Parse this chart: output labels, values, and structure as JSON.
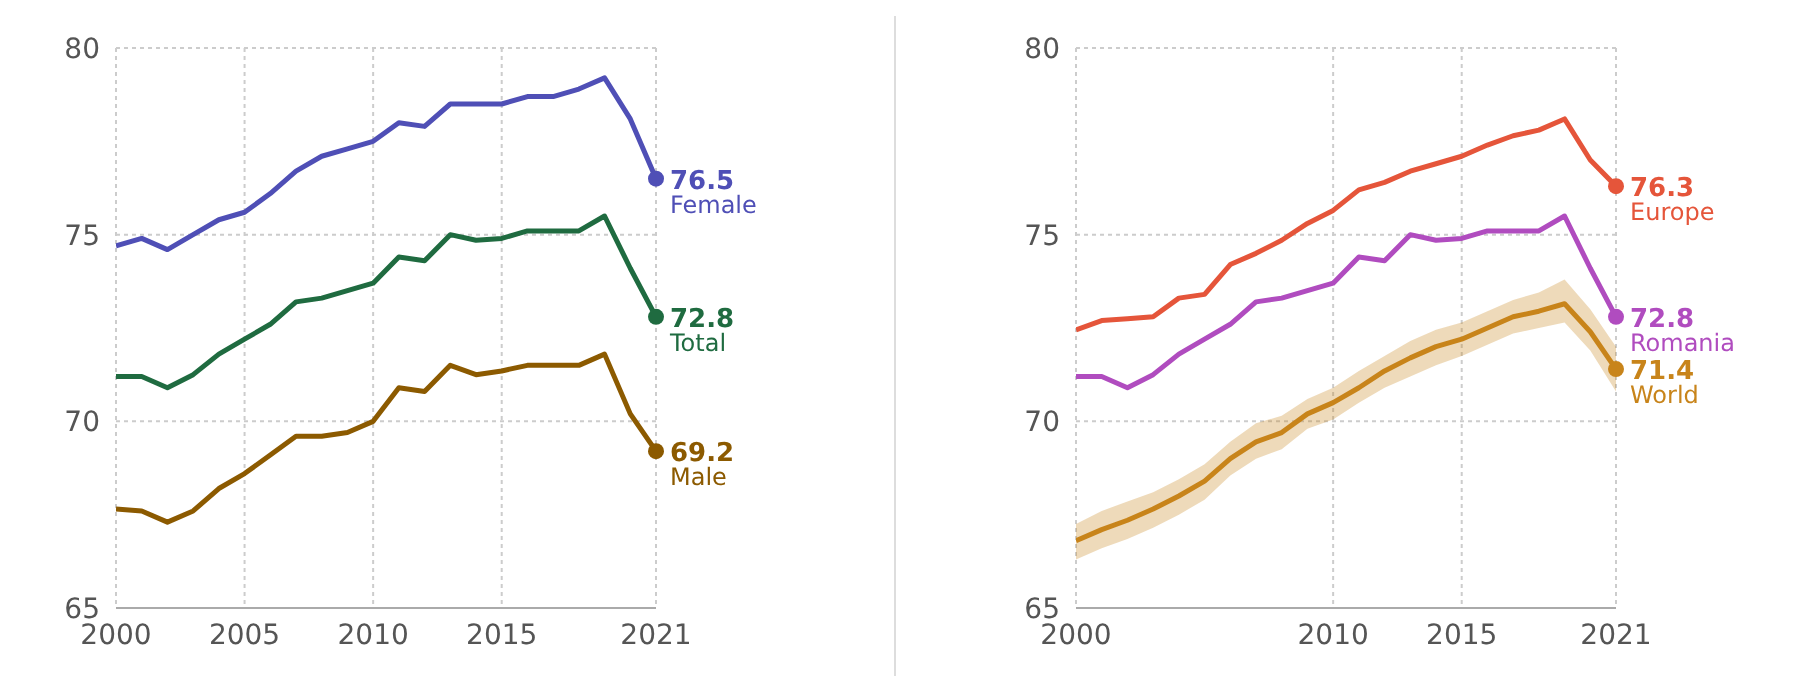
{
  "chart_data": [
    {
      "type": "line",
      "x": [
        2000,
        2001,
        2002,
        2003,
        2004,
        2005,
        2006,
        2007,
        2008,
        2009,
        2010,
        2011,
        2012,
        2013,
        2014,
        2015,
        2016,
        2017,
        2018,
        2019,
        2020,
        2021
      ],
      "xlim": [
        2000,
        2021
      ],
      "xticks": [
        2000,
        2005,
        2010,
        2015,
        2021
      ],
      "ylim": [
        65,
        80
      ],
      "yticks": [
        65,
        70,
        75,
        80
      ],
      "grid": true,
      "legend": false,
      "series": [
        {
          "name": "Female",
          "color": "#4f4fb6",
          "values": [
            74.7,
            74.9,
            74.6,
            75.0,
            75.4,
            75.6,
            76.1,
            76.7,
            77.1,
            77.3,
            77.5,
            78.0,
            77.9,
            78.5,
            78.5,
            78.5,
            78.7,
            78.7,
            78.9,
            79.2,
            78.1,
            76.5
          ],
          "value_labels": [
            null,
            null,
            null,
            null,
            null,
            null,
            null,
            null,
            null,
            null,
            null,
            null,
            null,
            null,
            null,
            null,
            null,
            null,
            null,
            null,
            null,
            "76.5"
          ]
        },
        {
          "name": "Total",
          "color": "#1f6b40",
          "values": [
            71.2,
            71.2,
            70.9,
            71.25,
            71.8,
            72.2,
            72.6,
            73.2,
            73.3,
            73.5,
            73.7,
            74.4,
            74.3,
            75.0,
            74.85,
            74.9,
            75.1,
            75.1,
            75.1,
            75.5,
            74.1,
            72.8
          ],
          "value_labels": [
            null,
            null,
            null,
            null,
            null,
            null,
            null,
            null,
            null,
            null,
            null,
            null,
            null,
            null,
            null,
            null,
            null,
            null,
            null,
            null,
            null,
            "72.8"
          ]
        },
        {
          "name": "Male",
          "color": "#8c5a00",
          "values": [
            67.65,
            67.6,
            67.3,
            67.6,
            68.2,
            68.6,
            69.1,
            69.6,
            69.6,
            69.7,
            70.0,
            70.9,
            70.8,
            71.5,
            71.25,
            71.35,
            71.5,
            71.5,
            71.5,
            71.8,
            70.2,
            69.2
          ],
          "value_labels": [
            null,
            null,
            null,
            null,
            null,
            null,
            null,
            null,
            null,
            null,
            null,
            null,
            null,
            null,
            null,
            null,
            null,
            null,
            null,
            null,
            null,
            "69.2"
          ]
        }
      ]
    },
    {
      "type": "line",
      "x": [
        2000,
        2001,
        2002,
        2003,
        2004,
        2005,
        2006,
        2007,
        2008,
        2009,
        2010,
        2011,
        2012,
        2013,
        2014,
        2015,
        2016,
        2017,
        2018,
        2019,
        2020,
        2021
      ],
      "xlim": [
        2000,
        2021
      ],
      "xticks": [
        2000,
        2010,
        2015,
        2021
      ],
      "ylim": [
        65,
        80
      ],
      "yticks": [
        65,
        70,
        75,
        80
      ],
      "grid": true,
      "legend": false,
      "series": [
        {
          "name": "Europe",
          "color": "#e5553a",
          "values": [
            72.45,
            72.7,
            72.75,
            72.8,
            73.3,
            73.4,
            74.2,
            74.5,
            74.85,
            75.3,
            75.65,
            76.2,
            76.4,
            76.7,
            76.9,
            77.1,
            77.4,
            77.65,
            77.8,
            78.1,
            77.0,
            76.3
          ],
          "value_labels": [
            null,
            null,
            null,
            null,
            null,
            null,
            null,
            null,
            null,
            null,
            null,
            null,
            null,
            null,
            null,
            null,
            null,
            null,
            null,
            null,
            null,
            "76.3"
          ]
        },
        {
          "name": "Romania",
          "color": "#b04cbf",
          "values": [
            71.2,
            71.2,
            70.9,
            71.25,
            71.8,
            72.2,
            72.6,
            73.2,
            73.3,
            73.5,
            73.7,
            74.4,
            74.3,
            75.0,
            74.85,
            74.9,
            75.1,
            75.1,
            75.1,
            75.5,
            74.1,
            72.8
          ],
          "value_labels": [
            null,
            null,
            null,
            null,
            null,
            null,
            null,
            null,
            null,
            null,
            null,
            null,
            null,
            null,
            null,
            null,
            null,
            null,
            null,
            null,
            null,
            "72.8"
          ]
        },
        {
          "name": "World",
          "color": "#c8841a",
          "values": [
            66.8,
            67.1,
            67.35,
            67.65,
            68.0,
            68.4,
            69.0,
            69.45,
            69.7,
            70.2,
            70.5,
            70.9,
            71.35,
            71.7,
            72.0,
            72.2,
            72.5,
            72.8,
            72.95,
            73.15,
            72.4,
            71.4
          ],
          "lower": [
            66.3,
            66.6,
            66.85,
            67.15,
            67.5,
            67.9,
            68.55,
            69.0,
            69.25,
            69.8,
            70.05,
            70.5,
            70.9,
            71.2,
            71.5,
            71.75,
            72.05,
            72.35,
            72.5,
            72.65,
            71.9,
            70.8
          ],
          "upper": [
            67.25,
            67.6,
            67.85,
            68.1,
            68.45,
            68.85,
            69.45,
            69.95,
            70.15,
            70.6,
            70.9,
            71.35,
            71.75,
            72.15,
            72.45,
            72.65,
            72.95,
            73.25,
            73.45,
            73.8,
            73.0,
            72.0
          ],
          "value_labels": [
            null,
            null,
            null,
            null,
            null,
            null,
            null,
            null,
            null,
            null,
            null,
            null,
            null,
            null,
            null,
            null,
            null,
            null,
            null,
            null,
            null,
            "71.4"
          ]
        }
      ]
    }
  ]
}
